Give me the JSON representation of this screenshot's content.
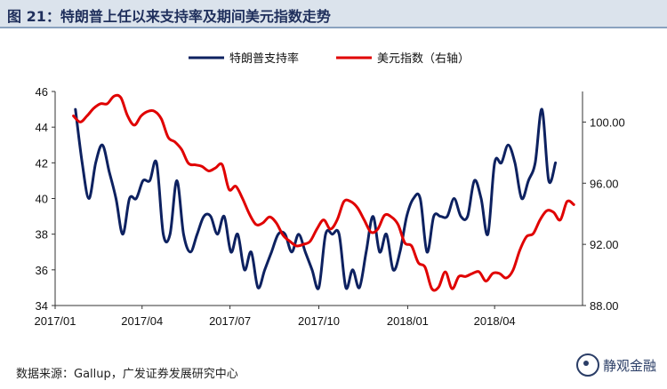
{
  "figure": {
    "title": "图 21：特朗普上任以来支持率及期间美元指数走势",
    "source": "数据来源：Gallup，广发证券发展研究中心",
    "watermark": "静观金融",
    "watermark_icon": "wechat-logo-icon"
  },
  "chart_data": {
    "type": "line",
    "legend_position": "top-center",
    "grid": false,
    "x_ticks": [
      "2017/01",
      "2017/04",
      "2017/07",
      "2017/10",
      "2018/01",
      "2018/04"
    ],
    "left_axis": {
      "ylim": [
        34,
        46
      ],
      "ticks": [
        "34",
        "36",
        "38",
        "40",
        "42",
        "44",
        "46"
      ]
    },
    "right_axis": {
      "ylim": [
        88,
        102
      ],
      "ticks": [
        "88.00",
        "92.00",
        "96.00",
        "100.00"
      ]
    },
    "series": [
      {
        "name": "特朗普支持率",
        "axis": "left",
        "color": "#0d2160",
        "points": [
          [
            "2017-01-22",
            45
          ],
          [
            "2017-01-29",
            42
          ],
          [
            "2017-02-05",
            40
          ],
          [
            "2017-02-12",
            42
          ],
          [
            "2017-02-19",
            43
          ],
          [
            "2017-02-26",
            41.5
          ],
          [
            "2017-03-05",
            40
          ],
          [
            "2017-03-12",
            38
          ],
          [
            "2017-03-19",
            40
          ],
          [
            "2017-03-26",
            40
          ],
          [
            "2017-04-02",
            41
          ],
          [
            "2017-04-09",
            41
          ],
          [
            "2017-04-16",
            42
          ],
          [
            "2017-04-23",
            38
          ],
          [
            "2017-04-30",
            38
          ],
          [
            "2017-05-07",
            41
          ],
          [
            "2017-05-14",
            38
          ],
          [
            "2017-05-21",
            37
          ],
          [
            "2017-05-28",
            38
          ],
          [
            "2017-06-04",
            39
          ],
          [
            "2017-06-11",
            39
          ],
          [
            "2017-06-18",
            38
          ],
          [
            "2017-06-25",
            39
          ],
          [
            "2017-07-02",
            37
          ],
          [
            "2017-07-09",
            38
          ],
          [
            "2017-07-16",
            36
          ],
          [
            "2017-07-23",
            37
          ],
          [
            "2017-07-30",
            35
          ],
          [
            "2017-08-06",
            36
          ],
          [
            "2017-08-13",
            37
          ],
          [
            "2017-08-20",
            38
          ],
          [
            "2017-08-27",
            38
          ],
          [
            "2017-09-03",
            37
          ],
          [
            "2017-09-10",
            38
          ],
          [
            "2017-09-17",
            37
          ],
          [
            "2017-09-24",
            36
          ],
          [
            "2017-10-01",
            35
          ],
          [
            "2017-10-08",
            38
          ],
          [
            "2017-10-15",
            38
          ],
          [
            "2017-10-22",
            38
          ],
          [
            "2017-10-29",
            35
          ],
          [
            "2017-11-05",
            36
          ],
          [
            "2017-11-12",
            35
          ],
          [
            "2017-11-19",
            37
          ],
          [
            "2017-11-26",
            39
          ],
          [
            "2017-12-03",
            37
          ],
          [
            "2017-12-10",
            38
          ],
          [
            "2017-12-17",
            36
          ],
          [
            "2017-12-24",
            37
          ],
          [
            "2017-12-31",
            39
          ],
          [
            "2018-01-07",
            40
          ],
          [
            "2018-01-14",
            40
          ],
          [
            "2018-01-21",
            37
          ],
          [
            "2018-01-28",
            39
          ],
          [
            "2018-02-04",
            39
          ],
          [
            "2018-02-11",
            39
          ],
          [
            "2018-02-18",
            40
          ],
          [
            "2018-02-25",
            39
          ],
          [
            "2018-03-04",
            39
          ],
          [
            "2018-03-11",
            41
          ],
          [
            "2018-03-18",
            40
          ],
          [
            "2018-03-25",
            38
          ],
          [
            "2018-04-01",
            42
          ],
          [
            "2018-04-08",
            42
          ],
          [
            "2018-04-15",
            43
          ],
          [
            "2018-04-22",
            42
          ],
          [
            "2018-04-29",
            40
          ],
          [
            "2018-05-06",
            41
          ],
          [
            "2018-05-13",
            42
          ],
          [
            "2018-05-20",
            45
          ],
          [
            "2018-05-27",
            41
          ],
          [
            "2018-06-03",
            42
          ]
        ]
      },
      {
        "name": "美元指数（右轴）",
        "axis": "right",
        "color": "#e00000",
        "points": [
          [
            "2017-01-20",
            100.4
          ],
          [
            "2017-01-27",
            100.0
          ],
          [
            "2017-02-03",
            100.4
          ],
          [
            "2017-02-10",
            100.9
          ],
          [
            "2017-02-17",
            101.2
          ],
          [
            "2017-02-24",
            101.2
          ],
          [
            "2017-03-03",
            101.7
          ],
          [
            "2017-03-10",
            101.6
          ],
          [
            "2017-03-17",
            100.4
          ],
          [
            "2017-03-24",
            99.8
          ],
          [
            "2017-03-31",
            100.4
          ],
          [
            "2017-04-07",
            100.7
          ],
          [
            "2017-04-14",
            100.7
          ],
          [
            "2017-04-21",
            100.2
          ],
          [
            "2017-04-28",
            99.0
          ],
          [
            "2017-05-05",
            98.7
          ],
          [
            "2017-05-12",
            98.2
          ],
          [
            "2017-05-19",
            97.3
          ],
          [
            "2017-05-26",
            97.2
          ],
          [
            "2017-06-02",
            97.1
          ],
          [
            "2017-06-09",
            96.8
          ],
          [
            "2017-06-16",
            97.0
          ],
          [
            "2017-06-23",
            97.2
          ],
          [
            "2017-06-30",
            95.6
          ],
          [
            "2017-07-07",
            95.8
          ],
          [
            "2017-07-14",
            95.0
          ],
          [
            "2017-07-21",
            94.0
          ],
          [
            "2017-07-28",
            93.3
          ],
          [
            "2017-08-04",
            93.4
          ],
          [
            "2017-08-11",
            93.8
          ],
          [
            "2017-08-18",
            93.4
          ],
          [
            "2017-08-25",
            92.6
          ],
          [
            "2017-09-01",
            92.2
          ],
          [
            "2017-09-08",
            91.9
          ],
          [
            "2017-09-15",
            92.0
          ],
          [
            "2017-09-22",
            92.2
          ],
          [
            "2017-09-29",
            93.0
          ],
          [
            "2017-10-06",
            93.6
          ],
          [
            "2017-10-13",
            93.0
          ],
          [
            "2017-10-20",
            93.6
          ],
          [
            "2017-10-27",
            94.8
          ],
          [
            "2017-11-03",
            94.8
          ],
          [
            "2017-11-10",
            94.4
          ],
          [
            "2017-11-17",
            93.6
          ],
          [
            "2017-11-24",
            92.8
          ],
          [
            "2017-12-01",
            93.0
          ],
          [
            "2017-12-08",
            93.9
          ],
          [
            "2017-12-15",
            93.8
          ],
          [
            "2017-12-22",
            93.3
          ],
          [
            "2017-12-29",
            92.1
          ],
          [
            "2018-01-05",
            91.9
          ],
          [
            "2018-01-12",
            90.8
          ],
          [
            "2018-01-19",
            90.5
          ],
          [
            "2018-01-26",
            89.1
          ],
          [
            "2018-02-02",
            89.2
          ],
          [
            "2018-02-09",
            90.2
          ],
          [
            "2018-02-16",
            89.1
          ],
          [
            "2018-02-23",
            89.9
          ],
          [
            "2018-03-02",
            89.9
          ],
          [
            "2018-03-09",
            90.1
          ],
          [
            "2018-03-16",
            90.2
          ],
          [
            "2018-03-23",
            89.6
          ],
          [
            "2018-03-30",
            90.1
          ],
          [
            "2018-04-06",
            90.1
          ],
          [
            "2018-04-13",
            89.8
          ],
          [
            "2018-04-20",
            90.3
          ],
          [
            "2018-04-27",
            91.6
          ],
          [
            "2018-05-04",
            92.5
          ],
          [
            "2018-05-11",
            92.7
          ],
          [
            "2018-05-18",
            93.6
          ],
          [
            "2018-05-25",
            94.2
          ],
          [
            "2018-06-01",
            94.1
          ],
          [
            "2018-06-08",
            93.6
          ],
          [
            "2018-06-15",
            94.8
          ],
          [
            "2018-06-22",
            94.6
          ]
        ]
      }
    ]
  }
}
